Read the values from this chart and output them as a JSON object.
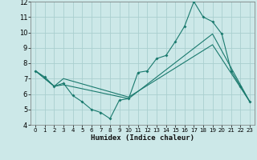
{
  "xlabel": "Humidex (Indice chaleur)",
  "xlim": [
    -0.5,
    23.5
  ],
  "ylim": [
    4,
    12
  ],
  "xticks": [
    0,
    1,
    2,
    3,
    4,
    5,
    6,
    7,
    8,
    9,
    10,
    11,
    12,
    13,
    14,
    15,
    16,
    17,
    18,
    19,
    20,
    21,
    22,
    23
  ],
  "yticks": [
    4,
    5,
    6,
    7,
    8,
    9,
    10,
    11,
    12
  ],
  "background_color": "#cce8e8",
  "grid_color": "#aacfcf",
  "line_color": "#1a7a6e",
  "series1_x": [
    0,
    1,
    2,
    3,
    4,
    5,
    6,
    7,
    8,
    9,
    10,
    11,
    12,
    13,
    14,
    15,
    16,
    17,
    18,
    19,
    20,
    21,
    22,
    23
  ],
  "series1_y": [
    7.5,
    7.1,
    6.5,
    6.7,
    5.9,
    5.5,
    5.0,
    4.8,
    4.4,
    5.6,
    5.7,
    7.4,
    7.5,
    8.3,
    8.5,
    9.4,
    10.4,
    12.0,
    11.0,
    10.7,
    9.9,
    7.5,
    6.5,
    5.5
  ],
  "series2_x": [
    0,
    2,
    3,
    10,
    19,
    23
  ],
  "series2_y": [
    7.5,
    6.5,
    7.0,
    5.8,
    9.2,
    5.5
  ],
  "series3_x": [
    0,
    2,
    3,
    10,
    19,
    23
  ],
  "series3_y": [
    7.5,
    6.5,
    6.6,
    5.7,
    9.9,
    5.5
  ]
}
